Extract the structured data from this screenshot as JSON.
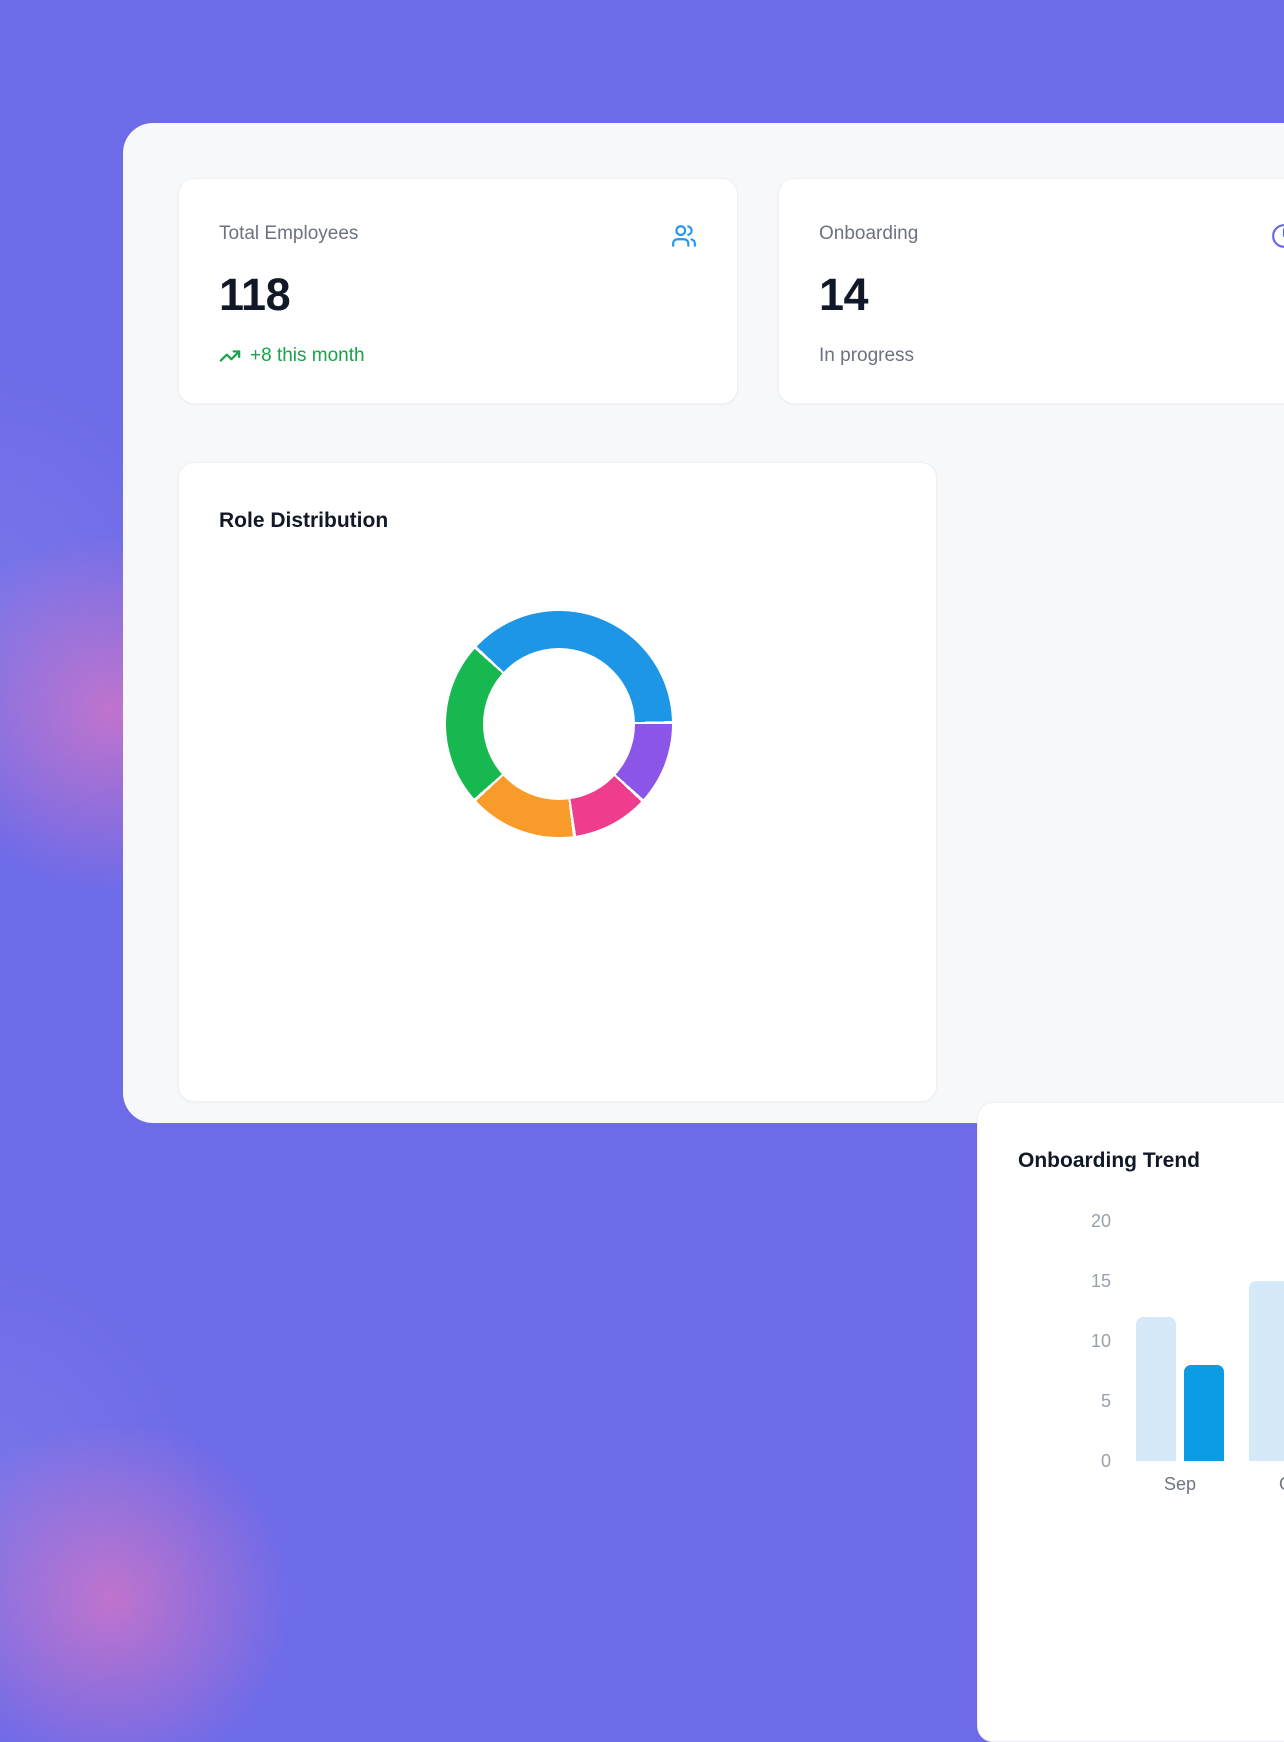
{
  "theme": {
    "background_purple": "#6e6be8",
    "pink_glow": "#f478ba",
    "panel_bg": "#f7f8fa",
    "card_bg": "#ffffff",
    "text_primary": "#111827",
    "text_muted": "#6b7280",
    "positive_green": "#17a34a",
    "users_icon_blue": "#2196f3",
    "clock_icon_indigo": "#6366f1"
  },
  "stat_cards": [
    {
      "label": "Total Employees",
      "value": "118",
      "delta": "+8 this month",
      "icon": "users-icon",
      "icon_color": "#2196f3",
      "delta_color": "#17a34a"
    },
    {
      "label": "Onboarding",
      "value": "14",
      "sub": "In progress",
      "icon": "clock-icon",
      "icon_color": "#6366f1"
    }
  ],
  "chart_data": [
    {
      "id": "role-distribution-donut",
      "type": "donut",
      "title": "Role Distribution",
      "legend": "none",
      "start_angle_deg": -47.5,
      "segments": [
        {
          "name": "slice-1",
          "color": "#1e96e6",
          "pct": 38
        },
        {
          "name": "slice-2",
          "color": "#8b55e8",
          "pct": 12
        },
        {
          "name": "slice-3",
          "color": "#ee3d8d",
          "pct": 11
        },
        {
          "name": "slice-4",
          "color": "#f99b2b",
          "pct": 15.5
        },
        {
          "name": "slice-5",
          "color": "#17b850",
          "pct": 23.5
        }
      ]
    },
    {
      "id": "onboarding-trend-bars",
      "type": "bar",
      "title": "Onboarding Trend",
      "categories": [
        "Sep",
        "Oct"
      ],
      "series": [
        {
          "name": "light",
          "color": "#d6e9f8",
          "values": [
            12,
            15
          ]
        },
        {
          "name": "dark",
          "color": "#0c9ce4",
          "values": [
            8,
            null
          ]
        }
      ],
      "yticks": [
        0,
        5,
        10,
        15,
        20
      ],
      "ylim": [
        0,
        20
      ],
      "grid": false,
      "layout_note": "second category group clipped by right edge of viewport"
    }
  ]
}
